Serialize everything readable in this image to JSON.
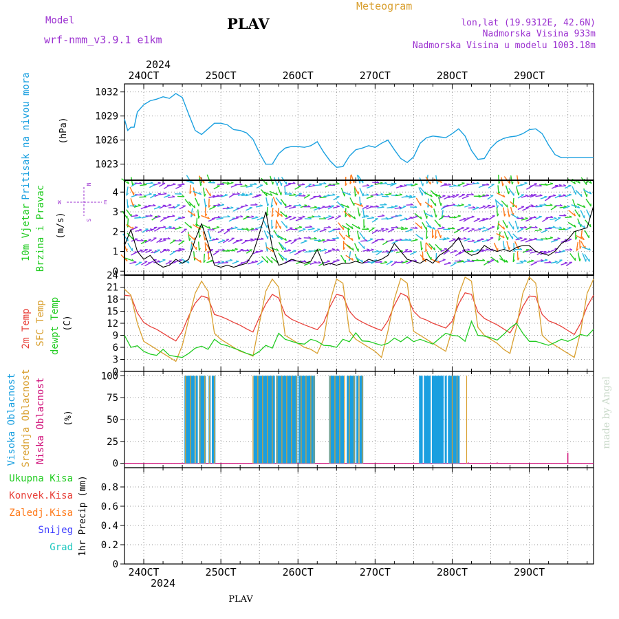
{
  "header": {
    "model_label": "Model",
    "model_name": "wrf-nmm_v3.9.1  e1km",
    "station": "PLAV",
    "meteogram": "Meteogram",
    "lonlat": "lon,lat (19.9312E, 42.6N)",
    "elevation": "Nadmorska Visina 933m",
    "model_elevation": "Nadmorska Visina u modelu 1003.18m",
    "footer_station": "PLAV",
    "watermark": "made by Angel"
  },
  "time_axis": {
    "year": "2024",
    "day_labels": [
      "24OCT",
      "25OCT",
      "26OCT",
      "27OCT",
      "28OCT",
      "29OCT"
    ],
    "start_hour_offset": -6,
    "end_hour_offset": 140
  },
  "colors": {
    "pressure": "#1aa0e0",
    "temp2m": "#e8413a",
    "sfc_temp": "#d9a030",
    "dewpoint": "#22cc22",
    "high_cloud": "#1a9fe0",
    "mid_cloud": "#d9a030",
    "low_cloud": "#d0107a",
    "wind_purple": "#8a2be2",
    "wind_cyan": "#28b8e0",
    "wind_green": "#22cc22",
    "wind_orange": "#ff7a1a",
    "wind_speed_line": "#000000"
  },
  "chart_data": [
    {
      "type": "line",
      "panel": "pressure",
      "ylabel_name": "Pritisak na nivou mora",
      "ylabel_unit": "(hPa)",
      "ylim": [
        1021,
        1033
      ],
      "yticks": [
        1023,
        1026,
        1029,
        1032
      ],
      "grid": true,
      "series": [
        {
          "x": [
            -6,
            -5,
            -4,
            -3,
            -2,
            0,
            2,
            4,
            6,
            8,
            10,
            12,
            14,
            16,
            18,
            20,
            22,
            24,
            26,
            28,
            30,
            32,
            34,
            36,
            38,
            40,
            42,
            44,
            46,
            48,
            50,
            52,
            54,
            56,
            58,
            60,
            62,
            64,
            66,
            68,
            70,
            72,
            74,
            76,
            78,
            80,
            82,
            84,
            86,
            88,
            90,
            92,
            94,
            96,
            98,
            100,
            102,
            104,
            106,
            108,
            110,
            112,
            114,
            116,
            118,
            120,
            122,
            124,
            126,
            128,
            130,
            132,
            134,
            136,
            138,
            140
          ],
          "values": [
            1028.6,
            1027.2,
            1027.6,
            1027.6,
            1029.5,
            1030.4,
            1030.9,
            1031.1,
            1031.4,
            1031.2,
            1031.8,
            1031.3,
            1029.2,
            1027.2,
            1026.7,
            1027.4,
            1028.1,
            1028.1,
            1027.9,
            1027.3,
            1027.2,
            1026.9,
            1026.1,
            1024.4,
            1023.0,
            1023.0,
            1024.3,
            1025.0,
            1025.2,
            1025.2,
            1025.1,
            1025.3,
            1025.8,
            1024.5,
            1023.4,
            1022.6,
            1022.7,
            1024.0,
            1024.8,
            1025.0,
            1025.3,
            1025.1,
            1025.6,
            1026.0,
            1024.8,
            1023.7,
            1023.2,
            1023.9,
            1025.6,
            1026.3,
            1026.5,
            1026.4,
            1026.3,
            1026.8,
            1027.4,
            1026.5,
            1024.7,
            1023.6,
            1023.7,
            1025.0,
            1025.8,
            1026.2,
            1026.4,
            1026.5,
            1026.8,
            1027.3,
            1027.4,
            1026.8,
            1025.4,
            1024.2,
            1023.8,
            1023.8,
            1023.8,
            1023.8,
            1023.8,
            1023.8
          ]
        }
      ]
    },
    {
      "type": "line",
      "panel": "wind",
      "ylabel_name": "10m Vjetar",
      "ylabel_name2": "Brzina i Pravac",
      "ylabel_unit": "(m/s)",
      "compass": {
        "n": "N",
        "s": "S",
        "e": "E",
        "w": "W"
      },
      "ylim": [
        -0.2,
        4.6
      ],
      "yticks": [
        0,
        1,
        2,
        3,
        4
      ],
      "grid": true,
      "series": [
        {
          "name": "speed",
          "x": [
            -6,
            -4,
            -2,
            0,
            2,
            4,
            6,
            8,
            10,
            12,
            14,
            16,
            18,
            20,
            22,
            24,
            26,
            28,
            30,
            32,
            34,
            36,
            38,
            40,
            42,
            44,
            46,
            48,
            50,
            52,
            54,
            56,
            58,
            60,
            62,
            64,
            66,
            68,
            70,
            72,
            74,
            76,
            78,
            80,
            82,
            84,
            86,
            88,
            90,
            92,
            94,
            96,
            98,
            100,
            102,
            104,
            106,
            108,
            110,
            112,
            114,
            116,
            118,
            120,
            122,
            124,
            126,
            128,
            130,
            132,
            134,
            136,
            138,
            140
          ],
          "values": [
            1.3,
            2.1,
            1.0,
            0.6,
            0.8,
            0.4,
            0.2,
            0.3,
            0.6,
            0.4,
            0.6,
            1.6,
            2.4,
            1.4,
            0.3,
            0.2,
            0.3,
            0.2,
            0.3,
            0.4,
            0.9,
            1.9,
            3.0,
            1.2,
            0.3,
            0.4,
            0.6,
            0.5,
            0.4,
            0.5,
            1.1,
            0.3,
            0.4,
            0.3,
            0.4,
            0.4,
            0.5,
            0.4,
            0.6,
            0.5,
            0.6,
            0.8,
            1.4,
            1.0,
            0.6,
            0.5,
            0.4,
            0.6,
            0.4,
            0.8,
            1.0,
            1.3,
            1.7,
            1.0,
            0.8,
            0.9,
            1.3,
            1.1,
            1.0,
            1.1,
            1.0,
            1.2,
            1.3,
            1.3,
            1.0,
            0.9,
            0.8,
            1.0,
            1.4,
            1.6,
            2.0,
            2.1,
            2.2,
            3.3
          ]
        }
      ]
    },
    {
      "type": "line",
      "panel": "temperature",
      "ylabel_name": "2m Temp",
      "ylabel_name2": "SFC Temp",
      "ylabel_name3": "dewpt Temp",
      "ylabel_unit": "(C)",
      "ylim": [
        0,
        24
      ],
      "yticks": [
        0,
        3,
        6,
        9,
        12,
        15,
        18,
        21,
        24
      ],
      "grid": true,
      "x": [
        -6,
        -4,
        -2,
        0,
        2,
        4,
        6,
        8,
        10,
        12,
        14,
        16,
        18,
        20,
        22,
        24,
        26,
        28,
        30,
        32,
        34,
        36,
        38,
        40,
        42,
        44,
        46,
        48,
        50,
        52,
        54,
        56,
        58,
        60,
        62,
        64,
        66,
        68,
        70,
        72,
        74,
        76,
        78,
        80,
        82,
        84,
        86,
        88,
        90,
        92,
        94,
        96,
        98,
        100,
        102,
        104,
        106,
        108,
        110,
        112,
        114,
        116,
        118,
        120,
        122,
        124,
        126,
        128,
        130,
        132,
        134,
        136,
        138,
        140
      ],
      "series": [
        {
          "name": "2m",
          "values": [
            19.0,
            18.8,
            14.6,
            12.2,
            11.2,
            10.5,
            9.5,
            8.5,
            7.6,
            10.0,
            13.8,
            17.0,
            18.8,
            18.3,
            14.2,
            13.7,
            13.0,
            12.2,
            11.5,
            10.6,
            9.8,
            13.5,
            16.8,
            19.2,
            18.3,
            14.2,
            13.0,
            12.3,
            11.6,
            11.0,
            10.4,
            12.2,
            16.2,
            19.2,
            18.8,
            15.0,
            13.2,
            12.3,
            11.5,
            10.8,
            10.2,
            12.6,
            16.5,
            19.5,
            18.7,
            15.0,
            13.4,
            12.8,
            12.0,
            11.4,
            10.8,
            12.5,
            16.8,
            19.6,
            19.2,
            14.8,
            13.2,
            12.4,
            11.6,
            10.6,
            9.6,
            12.2,
            16.2,
            18.8,
            18.6,
            14.2,
            12.6,
            12.0,
            11.2,
            10.2,
            9.2,
            12.0,
            16.2,
            19.0
          ]
        },
        {
          "name": "sfc",
          "values": [
            20.5,
            19.0,
            12.0,
            7.5,
            6.5,
            5.5,
            4.5,
            3.5,
            2.5,
            6.5,
            13.0,
            19.5,
            22.5,
            20.0,
            9.5,
            8.0,
            7.0,
            6.0,
            5.0,
            4.5,
            3.8,
            12.0,
            20.0,
            23.0,
            21.0,
            9.0,
            8.0,
            7.0,
            6.0,
            5.5,
            4.5,
            8.0,
            17.5,
            23.0,
            22.0,
            10.0,
            8.0,
            7.0,
            6.0,
            5.0,
            3.5,
            10.0,
            18.0,
            23.2,
            22.0,
            10.0,
            9.0,
            8.0,
            7.0,
            6.0,
            5.0,
            10.5,
            19.0,
            23.5,
            22.5,
            11.0,
            9.0,
            8.0,
            7.0,
            5.5,
            4.5,
            11.0,
            19.5,
            23.5,
            22.0,
            9.0,
            7.5,
            6.5,
            5.5,
            4.5,
            3.5,
            10.0,
            19.5,
            23.0
          ]
        },
        {
          "name": "dewpt",
          "values": [
            9.0,
            6.0,
            6.4,
            5.0,
            4.3,
            4.0,
            5.5,
            4.0,
            3.7,
            3.5,
            4.5,
            5.8,
            6.3,
            5.5,
            8.0,
            6.8,
            6.4,
            5.8,
            5.2,
            4.5,
            4.0,
            5.0,
            6.5,
            5.8,
            9.5,
            8.0,
            7.5,
            7.0,
            6.8,
            8.0,
            7.5,
            6.5,
            6.4,
            6.0,
            8.0,
            7.4,
            9.6,
            7.6,
            7.5,
            7.0,
            6.5,
            7.0,
            8.3,
            7.4,
            8.6,
            7.4,
            8.0,
            7.4,
            6.8,
            8.2,
            9.5,
            9.0,
            8.8,
            7.5,
            12.5,
            9.0,
            8.8,
            8.4,
            7.8,
            9.2,
            10.8,
            12.0,
            9.5,
            7.5,
            7.5,
            7.0,
            6.5,
            7.2,
            8.0,
            7.5,
            8.2,
            9.2,
            8.8,
            10.5
          ]
        }
      ]
    },
    {
      "type": "bar",
      "panel": "cloud",
      "ylabel_name": "Visoka Oblacnost",
      "ylabel_name2": "Srednja Oblacnost",
      "ylabel_name3": "Niska Oblacnost",
      "ylabel_unit": "(%)",
      "ylim": [
        -5,
        105
      ],
      "yticks": [
        0,
        25,
        50,
        75,
        100
      ],
      "grid": true,
      "high_cloud_blocks": [
        [
          13,
          22
        ],
        [
          34,
          53
        ],
        [
          58,
          68
        ],
        [
          86,
          98
        ]
      ],
      "mid_cloud_lines_x": [
        13,
        14.5,
        16,
        17.5,
        19,
        20.5,
        22,
        34,
        35.5,
        37,
        38.5,
        40,
        41.5,
        43,
        44.5,
        46,
        47.5,
        49,
        50.5,
        52,
        53,
        58,
        59.5,
        61,
        62.5,
        64,
        65.5,
        67,
        68,
        96,
        97.5,
        100.5
      ],
      "low_cloud_spikes": [
        {
          "x": 101,
          "value": 1
        },
        {
          "x": 110,
          "value": 1
        },
        {
          "x": 132,
          "value": 12
        }
      ]
    },
    {
      "type": "line",
      "panel": "precip",
      "ylabel_name": "1hr Precip (mm)",
      "legend": [
        "Ukupna Kisa",
        "Konvek.Kisa",
        "Zaledj.Kisa",
        "Snijeg",
        "Grad"
      ],
      "legend_colors": [
        "#22cc22",
        "#e8413a",
        "#ff7a1a",
        "#4040ff",
        "#20c8c0"
      ],
      "ylim": [
        0,
        1.0
      ],
      "yticks": [
        0,
        0.2,
        0.4,
        0.6,
        0.8
      ],
      "ytick_labels": [
        "0",
        "0.2",
        "0.4",
        "0.6",
        "0.8"
      ],
      "grid": true,
      "series": [
        {
          "name": "total",
          "values": []
        }
      ]
    }
  ]
}
